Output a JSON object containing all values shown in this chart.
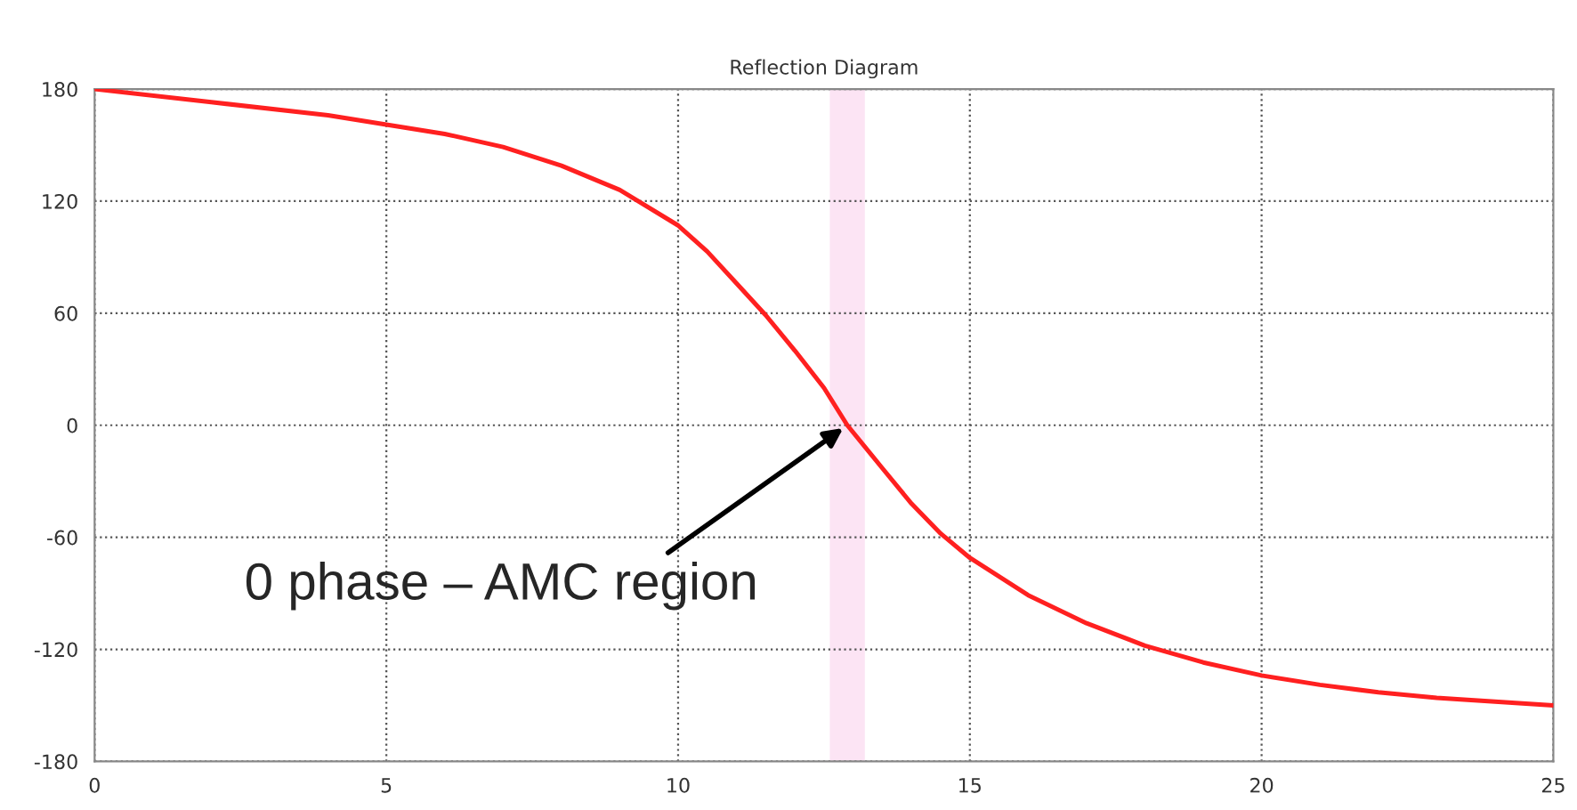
{
  "chart_data": {
    "type": "line",
    "title": "Reflection Diagram",
    "x": [
      0,
      2,
      4,
      5,
      6,
      7,
      8,
      9,
      10,
      10.5,
      11,
      11.5,
      12,
      12.5,
      12.9,
      13.5,
      14,
      14.5,
      15,
      16,
      17,
      18,
      19,
      20,
      21,
      22,
      23,
      24,
      25
    ],
    "series": [
      {
        "color": "#ff2020",
        "values": [
          180,
          173,
          166,
          161,
          156,
          149,
          139,
          126,
          107,
          93,
          76,
          59,
          40,
          20,
          0,
          -23,
          -42,
          -58,
          -71,
          -91,
          -106,
          -118,
          -127,
          -134,
          -139,
          -143,
          -146,
          -148,
          -150
        ]
      }
    ],
    "xlim": [
      0,
      25
    ],
    "xticks": [
      0,
      5,
      10,
      15,
      20,
      25
    ],
    "ylim": [
      -180,
      180
    ],
    "yticks": [
      -180,
      -120,
      -60,
      0,
      60,
      120,
      180
    ],
    "grid": true,
    "marker": "none",
    "line_style": "solid",
    "bands": [
      {
        "axis": "x",
        "from": 12.6,
        "to": 13.2,
        "color": "#fce4f4"
      }
    ],
    "annotations": [
      {
        "text": "0 phase – AMC region",
        "x": 12.9,
        "y": 0
      }
    ]
  }
}
